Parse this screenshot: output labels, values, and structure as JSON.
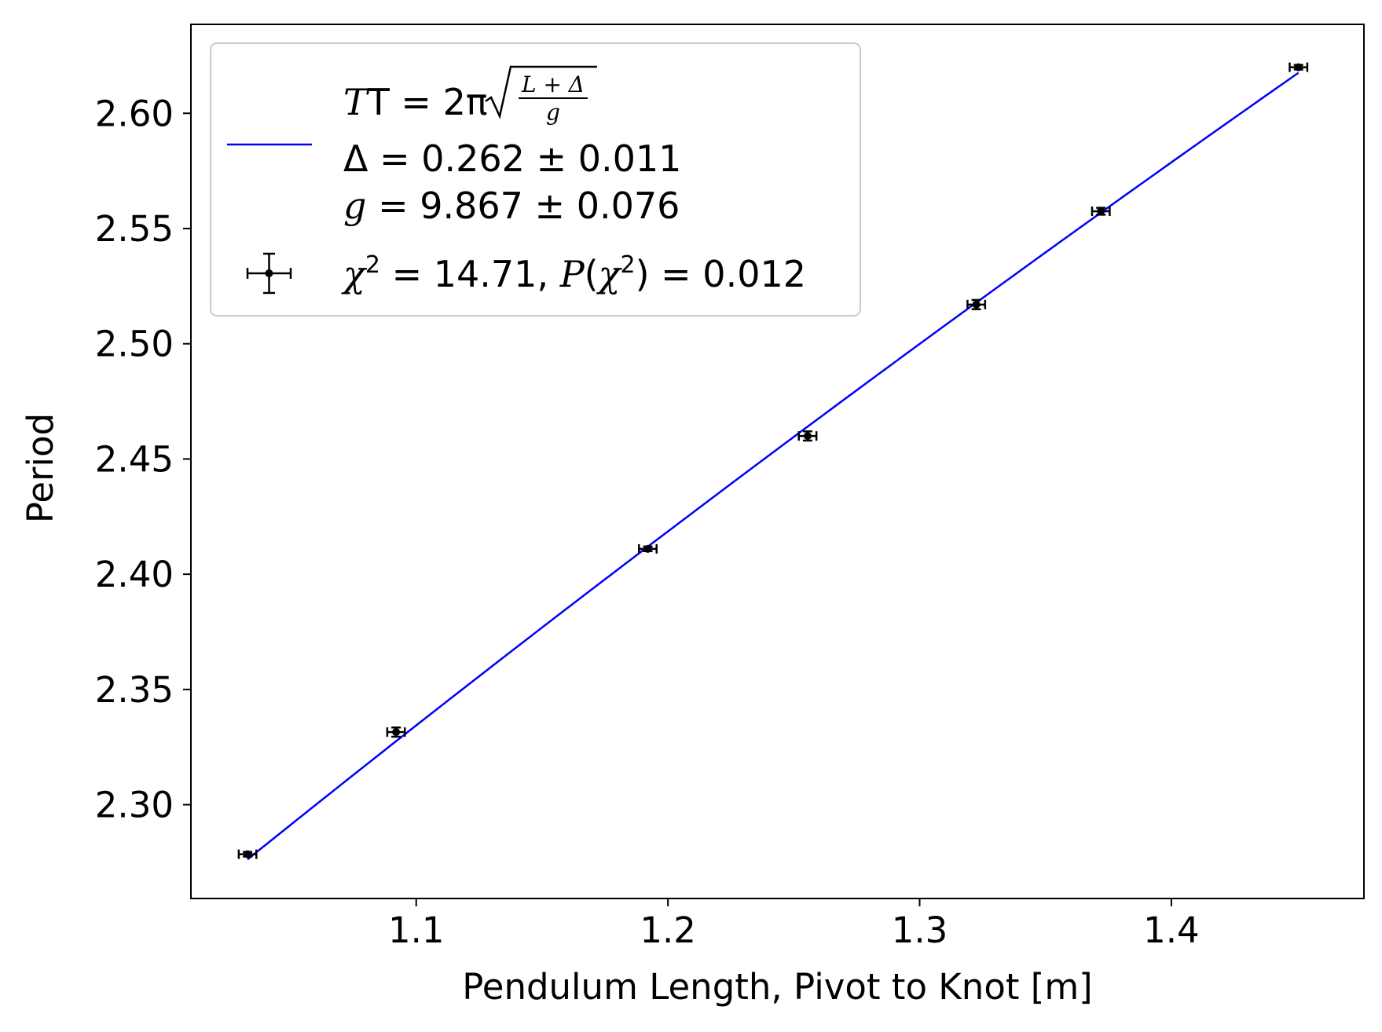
{
  "chart_data": {
    "type": "scatter",
    "xlabel": "Pendulum Length, Pivot to Knot [m]",
    "ylabel": "Period",
    "xlim": [
      1.0105,
      1.4765
    ],
    "ylim": [
      2.2593,
      2.6386
    ],
    "x_ticks": [
      1.1,
      1.2,
      1.3,
      1.4
    ],
    "x_tick_labels": [
      "1.1",
      "1.2",
      "1.3",
      "1.4"
    ],
    "y_ticks": [
      2.3,
      2.35,
      2.4,
      2.45,
      2.5,
      2.55,
      2.6
    ],
    "y_tick_labels": [
      "2.30",
      "2.35",
      "2.40",
      "2.45",
      "2.50",
      "2.55",
      "2.60"
    ],
    "grid": false,
    "legend_position": "upper-left",
    "series": [
      {
        "kind": "errorbar",
        "color": "#000000",
        "legend_label": "χ² = 14.71, P(χ²) = 0.012",
        "points": [
          {
            "x": 1.033,
            "y": 2.2785,
            "xerr": 0.0035,
            "yerr": 0.001
          },
          {
            "x": 1.092,
            "y": 2.3315,
            "xerr": 0.0035,
            "yerr": 0.002
          },
          {
            "x": 1.192,
            "y": 2.411,
            "xerr": 0.0035,
            "yerr": 0.001
          },
          {
            "x": 1.2555,
            "y": 2.46,
            "xerr": 0.0035,
            "yerr": 0.002
          },
          {
            "x": 1.3225,
            "y": 2.517,
            "xerr": 0.0035,
            "yerr": 0.002
          },
          {
            "x": 1.372,
            "y": 2.5575,
            "xerr": 0.0035,
            "yerr": 0.0015
          },
          {
            "x": 1.4505,
            "y": 2.62,
            "xerr": 0.0035,
            "yerr": 0.001
          }
        ]
      },
      {
        "kind": "fit",
        "color": "#0000ff",
        "model": "T = 2π·sqrt((L + Δ)/g)",
        "params": {
          "Delta": 0.262,
          "g": 9.867
        },
        "x_range": [
          1.033,
          1.4505
        ],
        "legend_lines": [
          "T = 2π√((L + Δ)/g)",
          "Δ = 0.262 ± 0.011",
          "g = 9.867 ± 0.076"
        ]
      }
    ],
    "legend": {
      "fit_line1_prefix": "T = 2π",
      "fit_frac_num": "L + Δ",
      "fit_frac_den": "g",
      "fit_line2": "Δ = 0.262 ± 0.011",
      "fit_line3_var": "g",
      "fit_line3_rest": " = 9.867 ± 0.076",
      "points_chi_var": "χ",
      "points_sup": "2",
      "points_mid": " = 14.71, ",
      "points_p": "P",
      "points_paren_open": "(",
      "points_chi_var2": "χ",
      "points_sup2": "2",
      "points_tail": ") = 0.012"
    }
  }
}
